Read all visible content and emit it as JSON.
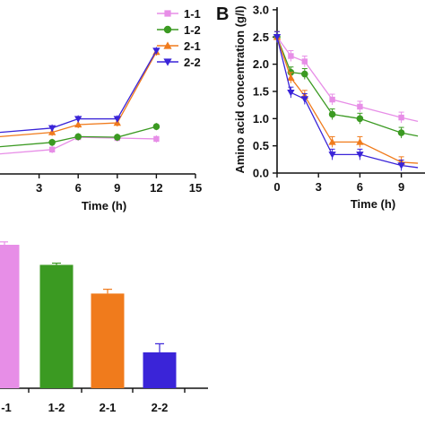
{
  "chart_data": [
    {
      "type": "line",
      "panel_label": "",
      "xlabel": "Time (h)",
      "ylabel": "",
      "xlim": [
        0,
        15
      ],
      "ylim": [
        0,
        3
      ],
      "x_ticks": [
        "3",
        "6",
        "9",
        "12",
        "15"
      ],
      "y_ticks": [],
      "legend": "top-right",
      "series": [
        {
          "name": "1-1",
          "color": "#e78ee7",
          "marker": "square",
          "x": [
            4,
            6,
            9,
            12
          ],
          "y": [
            0.85,
            1.28,
            1.25,
            1.22
          ]
        },
        {
          "name": "1-2",
          "color": "#3b9a22",
          "marker": "circle",
          "x": [
            4,
            6,
            9,
            12
          ],
          "y": [
            1.1,
            1.3,
            1.28,
            1.65
          ]
        },
        {
          "name": "2-1",
          "color": "#f07b1c",
          "marker": "triangle-up",
          "x": [
            4,
            6,
            9,
            12
          ],
          "y": [
            1.45,
            1.72,
            1.78,
            4.25
          ]
        },
        {
          "name": "2-2",
          "color": "#3a24d8",
          "marker": "triangle-down",
          "x": [
            4,
            6,
            9,
            12
          ],
          "y": [
            1.6,
            1.92,
            1.92,
            4.3
          ]
        }
      ]
    },
    {
      "type": "line",
      "panel_label": "B",
      "xlabel": "Time (h)",
      "ylabel": "Amino acid concentration (g/l)",
      "xlim": [
        0,
        10.2
      ],
      "ylim": [
        0,
        3
      ],
      "x_ticks": [
        "0",
        "3",
        "6",
        "9"
      ],
      "y_ticks": [
        "0.0",
        "0.5",
        "1.0",
        "1.5",
        "2.0",
        "2.5",
        "3.0"
      ],
      "series": [
        {
          "name": "1-1",
          "color": "#e78ee7",
          "marker": "square",
          "x": [
            0,
            1,
            2,
            4,
            6,
            9,
            10.2
          ],
          "y": [
            2.5,
            2.15,
            2.05,
            1.35,
            1.22,
            1.02,
            0.95
          ]
        },
        {
          "name": "1-2",
          "color": "#3b9a22",
          "marker": "circle",
          "x": [
            0,
            1,
            2,
            4,
            6,
            9,
            10.2
          ],
          "y": [
            2.5,
            1.85,
            1.82,
            1.08,
            1.0,
            0.74,
            0.68
          ]
        },
        {
          "name": "2-1",
          "color": "#f07b1c",
          "marker": "triangle-up",
          "x": [
            0,
            1,
            2,
            4,
            6,
            9,
            10.2
          ],
          "y": [
            2.5,
            1.75,
            1.42,
            0.57,
            0.57,
            0.2,
            0.18
          ]
        },
        {
          "name": "2-2",
          "color": "#3a24d8",
          "marker": "triangle-down",
          "x": [
            0,
            1,
            2,
            4,
            6,
            9,
            10.2
          ],
          "y": [
            2.5,
            1.48,
            1.36,
            0.34,
            0.34,
            0.14,
            0.1
          ]
        }
      ]
    },
    {
      "type": "bar",
      "panel_label": "",
      "categories": [
        "-1",
        "1-2",
        "2-1",
        "2-2"
      ],
      "values": [
        100,
        86,
        66,
        25
      ],
      "errors": [
        2,
        1.2,
        3,
        6
      ],
      "ylim": [
        0,
        108
      ],
      "colors": [
        "#e78ee7",
        "#3b9a22",
        "#f07b1c",
        "#3a24d8"
      ]
    }
  ]
}
